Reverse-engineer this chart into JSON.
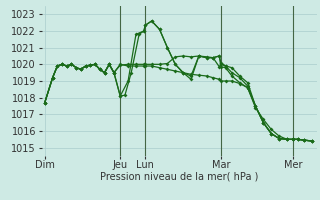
{
  "background_color": "#ceeae4",
  "grid_color": "#aacccc",
  "line_color": "#1a6b1a",
  "ylabel": "Pression niveau de la mer( hPa )",
  "ylim": [
    1014.5,
    1023.5
  ],
  "yticks": [
    1015,
    1016,
    1017,
    1018,
    1019,
    1020,
    1021,
    1022,
    1023
  ],
  "x_day_labels": [
    "Dim",
    "Jeu",
    "Lun",
    "Mar",
    "Mer"
  ],
  "x_day_positions": [
    2,
    50,
    66,
    114,
    160
  ],
  "xlim": [
    0,
    175
  ],
  "vline_positions": [
    50,
    66,
    114,
    160
  ],
  "vline_color": "#446644",
  "lines": [
    {
      "x": [
        2,
        7,
        10,
        13,
        16,
        19,
        22,
        25,
        28,
        31,
        34,
        37,
        40,
        43,
        46,
        50,
        53,
        57,
        62,
        65,
        66,
        70,
        75,
        80,
        85,
        90,
        95,
        100,
        105,
        109,
        113,
        114,
        117,
        121,
        126,
        131,
        136,
        141,
        146,
        151,
        156,
        160,
        163,
        167,
        172
      ],
      "y": [
        1017.7,
        1019.2,
        1019.9,
        1020.0,
        1019.9,
        1020.0,
        1019.8,
        1019.7,
        1019.9,
        1019.95,
        1020.0,
        1019.7,
        1019.5,
        1020.0,
        1019.5,
        1018.1,
        1018.15,
        1019.5,
        1021.8,
        1022.0,
        1022.35,
        1022.6,
        1022.1,
        1021.0,
        1020.0,
        1019.5,
        1019.1,
        1020.5,
        1020.4,
        1020.4,
        1020.5,
        1019.85,
        1019.8,
        1019.3,
        1018.9,
        1018.6,
        1017.4,
        1016.7,
        1016.1,
        1015.7,
        1015.5,
        1015.5,
        1015.5,
        1015.45,
        1015.4
      ],
      "marker": "D"
    },
    {
      "x": [
        2,
        7,
        10,
        13,
        16,
        19,
        22,
        25,
        28,
        31,
        34,
        37,
        40,
        43,
        46,
        50,
        55,
        60,
        65,
        66,
        70,
        75,
        80,
        85,
        90,
        95,
        100,
        105,
        109,
        113,
        114,
        117,
        121,
        126,
        131,
        136,
        141,
        146,
        151,
        156,
        160,
        163,
        167,
        172
      ],
      "y": [
        1017.7,
        1019.2,
        1019.9,
        1020.0,
        1019.9,
        1020.0,
        1019.8,
        1019.7,
        1019.9,
        1019.95,
        1020.0,
        1019.7,
        1019.5,
        1020.0,
        1019.5,
        1018.1,
        1019.0,
        1021.8,
        1022.0,
        1022.35,
        1022.6,
        1022.1,
        1021.0,
        1020.0,
        1019.5,
        1019.3,
        1020.5,
        1020.4,
        1020.4,
        1020.5,
        1020.1,
        1019.9,
        1019.8,
        1019.3,
        1018.9,
        1017.5,
        1016.5,
        1015.85,
        1015.55,
        1015.5,
        1015.5,
        1015.5,
        1015.45,
        1015.4
      ],
      "marker": "D"
    },
    {
      "x": [
        2,
        7,
        10,
        13,
        16,
        19,
        22,
        25,
        28,
        31,
        34,
        37,
        40,
        43,
        46,
        50,
        55,
        60,
        65,
        66,
        70,
        75,
        80,
        85,
        90,
        95,
        100,
        105,
        109,
        113,
        114,
        117,
        121,
        126,
        131,
        136,
        141,
        146,
        151,
        156,
        160,
        163,
        167,
        172
      ],
      "y": [
        1017.7,
        1019.2,
        1019.9,
        1020.0,
        1019.9,
        1020.0,
        1019.8,
        1019.7,
        1019.9,
        1019.95,
        1020.0,
        1019.7,
        1019.5,
        1020.0,
        1019.5,
        1020.0,
        1019.9,
        1019.9,
        1019.9,
        1019.9,
        1019.9,
        1019.8,
        1019.7,
        1019.6,
        1019.5,
        1019.4,
        1019.35,
        1019.3,
        1019.2,
        1019.1,
        1019.0,
        1019.0,
        1019.0,
        1018.85,
        1018.6,
        1017.5,
        1016.5,
        1015.85,
        1015.55,
        1015.5,
        1015.5,
        1015.5,
        1015.45,
        1015.4
      ],
      "marker": "D"
    },
    {
      "x": [
        2,
        7,
        10,
        13,
        16,
        19,
        22,
        25,
        28,
        31,
        34,
        37,
        40,
        43,
        46,
        50,
        55,
        60,
        65,
        66,
        70,
        75,
        80,
        85,
        90,
        95,
        100,
        105,
        109,
        113,
        114,
        117,
        121,
        126,
        131,
        136,
        141,
        146,
        151,
        156,
        160,
        163,
        167,
        172
      ],
      "y": [
        1017.7,
        1019.2,
        1019.9,
        1020.0,
        1019.9,
        1020.0,
        1019.8,
        1019.7,
        1019.9,
        1019.95,
        1020.0,
        1019.7,
        1019.5,
        1020.0,
        1019.5,
        1019.95,
        1020.0,
        1020.0,
        1020.0,
        1020.0,
        1020.0,
        1020.0,
        1020.05,
        1020.45,
        1020.5,
        1020.45,
        1020.5,
        1020.45,
        1020.4,
        1019.85,
        1020.0,
        1019.9,
        1019.5,
        1019.2,
        1018.7,
        1017.5,
        1016.5,
        1015.85,
        1015.55,
        1015.5,
        1015.5,
        1015.5,
        1015.45,
        1015.4
      ],
      "marker": "D"
    }
  ]
}
